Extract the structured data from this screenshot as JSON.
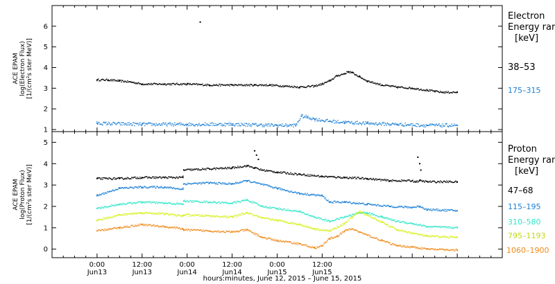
{
  "chart_data": [
    {
      "type": "scatter",
      "title": "",
      "ylabel_lines": [
        "ACE EPAM",
        "log(Electron Flux)",
        "[1/(cm²s ster MeV)]"
      ],
      "ylim": [
        0.9,
        7.0
      ],
      "yticks": [
        1,
        2,
        3,
        4,
        5,
        6
      ],
      "legend_title": [
        "Electron",
        "Energy ranges",
        "[keV]"
      ],
      "series": [
        {
          "name": "38–53",
          "color": "#000000",
          "x": [
            0,
            3,
            6,
            9,
            12,
            18,
            24,
            30,
            36,
            42,
            46,
            50,
            54,
            58,
            60,
            62,
            64,
            66,
            67,
            68,
            70,
            72,
            76,
            80,
            84,
            88,
            90,
            92,
            96
          ],
          "y": [
            3.4,
            3.4,
            3.35,
            3.3,
            3.2,
            3.2,
            3.2,
            3.15,
            3.15,
            3.15,
            3.15,
            3.1,
            3.05,
            3.1,
            3.2,
            3.35,
            3.6,
            3.7,
            3.8,
            3.75,
            3.55,
            3.35,
            3.15,
            3.05,
            3.0,
            2.9,
            2.85,
            2.8,
            2.8
          ]
        },
        {
          "name": "175–315",
          "color": "#1a7fd6",
          "x": [
            0,
            12,
            24,
            36,
            48,
            53,
            54.5,
            56,
            58,
            62,
            66,
            72,
            80,
            88,
            96
          ],
          "y": [
            1.3,
            1.25,
            1.25,
            1.25,
            1.2,
            1.2,
            1.65,
            1.6,
            1.5,
            1.4,
            1.35,
            1.3,
            1.25,
            1.2,
            1.2
          ]
        }
      ],
      "outliers": [
        {
          "x": 27.5,
          "y": 6.2,
          "series": "38–53"
        }
      ]
    },
    {
      "type": "scatter",
      "title": "",
      "ylabel_lines": [
        "ACE EPAM",
        "log(Proton Flux)",
        "[1/(cm²s ster MeV)]"
      ],
      "ylim": [
        -0.4,
        5.5
      ],
      "yticks": [
        0,
        1,
        2,
        3,
        4,
        5
      ],
      "legend_title": [
        "Proton",
        "Energy ranges",
        "[keV]"
      ],
      "series": [
        {
          "name": "47–68",
          "color": "#000000",
          "x": [
            0,
            6,
            12,
            18,
            22.9,
            23.1,
            30,
            36,
            40,
            42,
            44,
            48,
            54,
            60,
            66,
            72,
            78,
            84,
            85,
            86,
            88,
            96
          ],
          "y": [
            3.3,
            3.3,
            3.35,
            3.35,
            3.35,
            3.7,
            3.75,
            3.8,
            3.9,
            3.8,
            3.7,
            3.6,
            3.5,
            3.4,
            3.35,
            3.3,
            3.2,
            3.2,
            3.15,
            3.2,
            3.15,
            3.15
          ]
        },
        {
          "name": "115–195",
          "color": "#1a7fd6",
          "x": [
            0,
            6,
            12,
            18,
            22.9,
            23.1,
            30,
            36,
            40,
            48,
            54,
            60,
            62,
            66,
            72,
            78,
            84,
            86,
            88,
            96
          ],
          "y": [
            2.5,
            2.85,
            2.9,
            2.9,
            2.8,
            3.05,
            3.1,
            3.05,
            3.2,
            2.85,
            2.6,
            2.5,
            2.2,
            2.2,
            2.1,
            2.0,
            1.95,
            2.0,
            1.85,
            1.8
          ]
        },
        {
          "name": "310–580",
          "color": "#2ee6c8",
          "x": [
            0,
            6,
            12,
            18,
            22.9,
            23.1,
            30,
            36,
            40,
            44,
            48,
            54,
            58,
            62,
            66,
            70,
            72,
            76,
            80,
            84,
            88,
            96
          ],
          "y": [
            1.9,
            2.1,
            2.2,
            2.15,
            2.1,
            2.25,
            2.2,
            2.15,
            2.3,
            2.0,
            1.9,
            1.75,
            1.5,
            1.3,
            1.5,
            1.7,
            1.7,
            1.5,
            1.3,
            1.2,
            1.05,
            1.0
          ]
        },
        {
          "name": "795–1193",
          "color": "#d6f01a",
          "x": [
            0,
            6,
            12,
            18,
            22.9,
            23.1,
            30,
            36,
            40,
            44,
            48,
            54,
            58,
            62,
            66,
            68,
            70,
            72,
            76,
            80,
            84,
            88,
            96
          ],
          "y": [
            1.35,
            1.6,
            1.7,
            1.65,
            1.55,
            1.6,
            1.55,
            1.5,
            1.7,
            1.45,
            1.35,
            1.15,
            0.95,
            0.85,
            1.2,
            1.5,
            1.75,
            1.6,
            1.25,
            0.9,
            0.75,
            0.6,
            0.55
          ]
        },
        {
          "name": "1060–1900",
          "color": "#f08a1a",
          "x": [
            0,
            6,
            12,
            18,
            22.9,
            23.1,
            30,
            36,
            40,
            44,
            48,
            54,
            58,
            60,
            62,
            64,
            66,
            68,
            70,
            72,
            76,
            80,
            84,
            88,
            96
          ],
          "y": [
            0.85,
            1.0,
            1.15,
            1.05,
            0.95,
            0.9,
            0.85,
            0.8,
            0.9,
            0.55,
            0.4,
            0.25,
            0.05,
            0.15,
            0.5,
            0.6,
            0.85,
            0.95,
            0.8,
            0.65,
            0.4,
            0.15,
            0.1,
            0.0,
            -0.05
          ]
        }
      ],
      "outliers": [
        {
          "x": 42,
          "y": 4.6,
          "series": "47–68"
        },
        {
          "x": 42.5,
          "y": 4.4,
          "series": "47–68"
        },
        {
          "x": 43,
          "y": 4.2,
          "series": "47–68"
        },
        {
          "x": 85.5,
          "y": 4.3,
          "series": "47–68"
        },
        {
          "x": 86,
          "y": 4.0,
          "series": "47–68"
        },
        {
          "x": 86.3,
          "y": 3.7,
          "series": "47–68"
        }
      ]
    }
  ],
  "x_axis": {
    "domain_hours": [
      -12,
      108
    ],
    "ticks": [
      {
        "h": 0,
        "top": "0:00",
        "bottom": "Jun13"
      },
      {
        "h": 12,
        "top": "12:00",
        "bottom": "Jun13"
      },
      {
        "h": 24,
        "top": "0:00",
        "bottom": "Jun14"
      },
      {
        "h": 36,
        "top": "12:00",
        "bottom": "Jun14"
      },
      {
        "h": 48,
        "top": "0:00",
        "bottom": "Jun15"
      },
      {
        "h": 60,
        "top": "12:00",
        "bottom": "Jun15"
      }
    ],
    "label": "hours:minutes, June 12, 2015 – June 15, 2015"
  }
}
